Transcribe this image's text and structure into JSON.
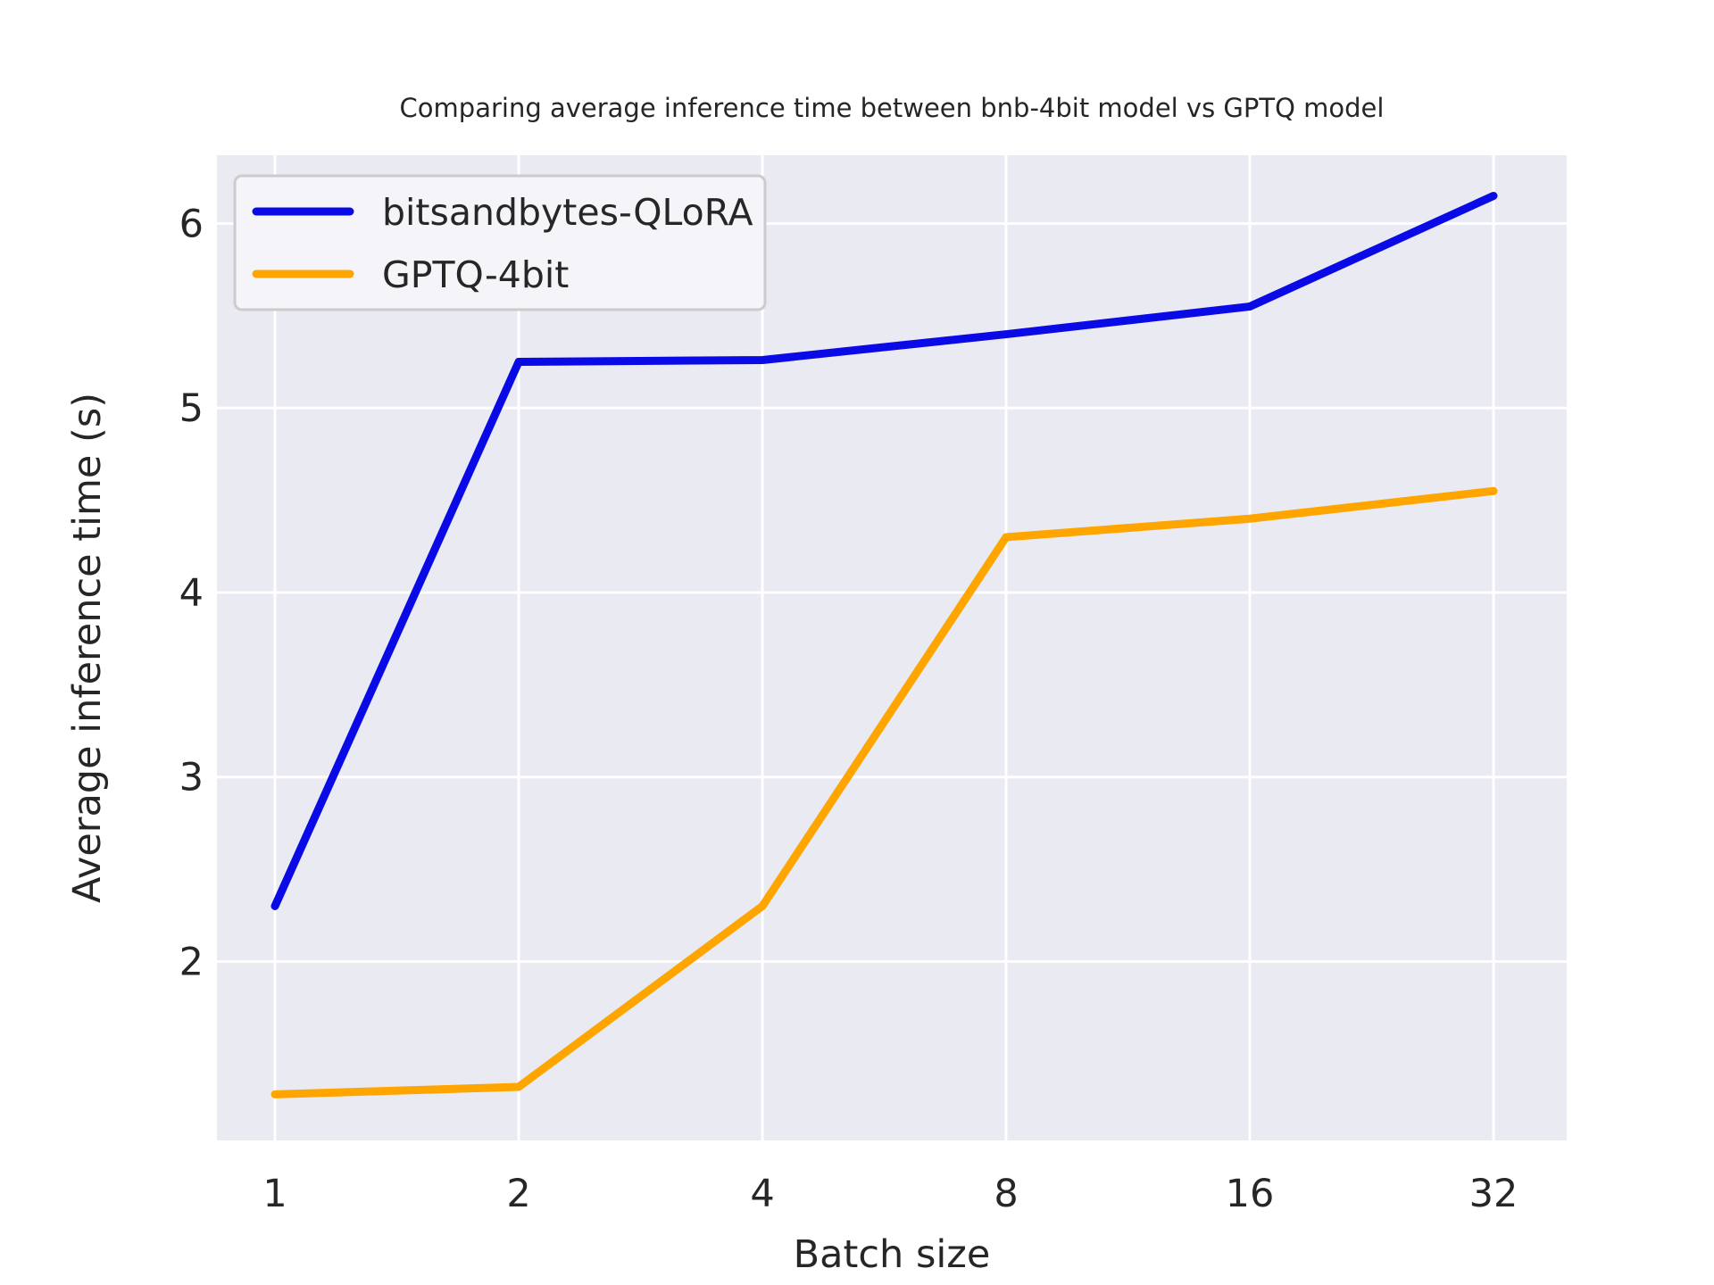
{
  "chart_data": {
    "type": "line",
    "title": "Comparing average inference time between bnb-4bit model vs GPTQ model",
    "xlabel": "Batch size",
    "ylabel": "Average inference time (s)",
    "x": [
      1,
      2,
      4,
      8,
      16,
      32
    ],
    "x_tick_labels": [
      "1",
      "2",
      "4",
      "8",
      "16",
      "32"
    ],
    "xscale": "log2",
    "yticks": [
      2,
      3,
      4,
      5,
      6
    ],
    "y_tick_labels": [
      "2",
      "3",
      "4",
      "5",
      "6"
    ],
    "ylim": [
      1.03,
      6.37
    ],
    "grid": true,
    "legend_position": "upper left",
    "series": [
      {
        "name": "bitsandbytes-QLoRA",
        "color": "#0a0ae6",
        "values": [
          2.3,
          5.25,
          5.26,
          5.4,
          5.55,
          6.15
        ]
      },
      {
        "name": "GPTQ-4bit",
        "color": "#ffa500",
        "values": [
          1.28,
          1.32,
          2.3,
          4.3,
          4.4,
          4.55
        ]
      }
    ],
    "style": {
      "figure_background": "#ffffff",
      "axes_background": "#eaeaf2",
      "grid_color": "#ffffff",
      "text_color": "#262626",
      "legend_background": "#f5f5f9",
      "legend_border": "#cccccc"
    }
  }
}
